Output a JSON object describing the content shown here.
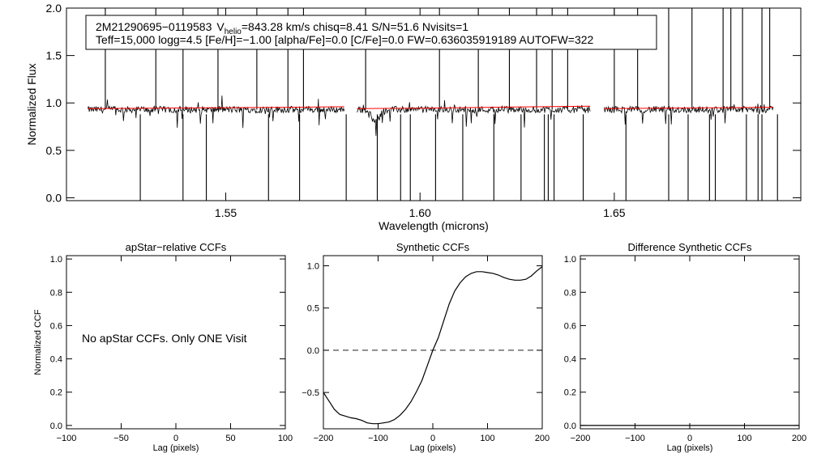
{
  "chart_data": [
    {
      "type": "line",
      "header_line1": {
        "star_id": "2M21290695−0119583",
        "vhelio_symbol": "V",
        "vhelio_sub": "helio",
        "rest": "=843.28 km/s  chisq=8.41  S/N=51.6  Nvisits=1"
      },
      "header_line2": "Teff=15,000 logg=4.5 [Fe/H]=−1.00 [alpha/Fe]=0.0 [C/Fe]=0.0 FW=0.636035919189 AUTOFW=322",
      "xlabel": "Wavelength (microns)",
      "ylabel": "Normalized Flux",
      "xlim": [
        1.509,
        1.698
      ],
      "ylim": [
        -0.03,
        2.0
      ],
      "xticks": [
        1.55,
        1.6,
        1.65
      ],
      "xtick_labels": [
        "1.55",
        "1.60",
        "1.65"
      ],
      "yticks": [
        0.0,
        0.5,
        1.0,
        1.5,
        2.0
      ],
      "ytick_labels": [
        "0.0",
        "0.5",
        "1.0",
        "1.5",
        "2.0"
      ],
      "chip_ranges": [
        [
          1.5145,
          1.5805
        ],
        [
          1.5838,
          1.6438
        ],
        [
          1.6474,
          1.6909
        ]
      ],
      "series": [
        {
          "name": "observed spectrum",
          "color": "#000000",
          "level": 0.93,
          "noise": 0.035
        },
        {
          "name": "synthetic model",
          "color": "#ff0000",
          "x": [
            1.5145,
            1.53,
            1.55,
            1.57,
            1.5805,
            1.5838,
            1.6,
            1.62,
            1.6438,
            1.6474,
            1.66,
            1.68,
            1.6909
          ],
          "y": [
            0.94,
            0.945,
            0.95,
            0.955,
            0.96,
            0.94,
            0.945,
            0.955,
            0.965,
            0.94,
            0.945,
            0.95,
            0.955
          ]
        }
      ],
      "emission_spikes": [
        1.519,
        1.532,
        1.539,
        1.548,
        1.558,
        1.566,
        1.57,
        1.586,
        1.605,
        1.615,
        1.623,
        1.63,
        1.634,
        1.638,
        1.65,
        1.656,
        1.664,
        1.67,
        1.678,
        1.68,
        1.683,
        1.688,
        1.69
      ],
      "absorption_dips": [
        1.528,
        1.539,
        1.545,
        1.561,
        1.569,
        1.581,
        1.589,
        1.595,
        1.5975,
        1.604,
        1.611,
        1.619,
        1.626,
        1.632,
        1.633,
        1.6345,
        1.642,
        1.653,
        1.664,
        1.669,
        1.6745,
        1.676,
        1.684,
        1.687,
        1.688,
        1.692
      ]
    },
    {
      "type": "line",
      "title": "apStar−relative CCFs",
      "xlabel": "Lag (pixels)",
      "ylabel": "Normalized CCF",
      "xlim": [
        -100,
        100
      ],
      "ylim": [
        -0.02,
        1.02
      ],
      "xticks": [
        -100,
        -50,
        0,
        50,
        100
      ],
      "xtick_labels": [
        "−100",
        "−50",
        "0",
        "50",
        "100"
      ],
      "yticks": [
        0.0,
        0.2,
        0.4,
        0.6,
        0.8,
        1.0
      ],
      "ytick_labels": [
        "0.0",
        "0.2",
        "0.4",
        "0.6",
        "0.8",
        "1.0"
      ],
      "message": "No apStar CCFs.  Only ONE Visit",
      "series": []
    },
    {
      "type": "line",
      "title": "Synthetic CCFs",
      "xlabel": "Lag (pixels)",
      "ylabel": "",
      "xlim": [
        -200,
        200
      ],
      "ylim": [
        -0.93,
        1.12
      ],
      "xticks": [
        -200,
        -100,
        0,
        100,
        200
      ],
      "xtick_labels": [
        "−200",
        "−100",
        "0",
        "100",
        "200"
      ],
      "yticks": [
        -0.5,
        0.0,
        0.5,
        1.0
      ],
      "ytick_labels": [
        "−0.5",
        "0.0",
        "0.5",
        "1.0"
      ],
      "zero_line": "dashed",
      "series": [
        {
          "name": "synthetic CCF",
          "x": [
            -200,
            -190,
            -180,
            -170,
            -160,
            -150,
            -140,
            -130,
            -120,
            -110,
            -100,
            -90,
            -80,
            -70,
            -60,
            -50,
            -40,
            -30,
            -20,
            -10,
            0,
            10,
            20,
            30,
            40,
            50,
            60,
            70,
            80,
            90,
            100,
            110,
            120,
            130,
            140,
            150,
            160,
            170,
            180,
            190,
            200
          ],
          "y": [
            -0.5,
            -0.6,
            -0.7,
            -0.76,
            -0.78,
            -0.8,
            -0.81,
            -0.83,
            -0.86,
            -0.87,
            -0.87,
            -0.86,
            -0.85,
            -0.82,
            -0.77,
            -0.7,
            -0.61,
            -0.49,
            -0.36,
            -0.18,
            0.0,
            0.15,
            0.35,
            0.55,
            0.7,
            0.8,
            0.87,
            0.91,
            0.93,
            0.93,
            0.92,
            0.91,
            0.89,
            0.86,
            0.84,
            0.83,
            0.83,
            0.84,
            0.88,
            0.94,
            0.99
          ]
        }
      ]
    },
    {
      "type": "line",
      "title": "Difference Synthetic CCFs",
      "xlabel": "Lag (pixels)",
      "ylabel": "",
      "xlim": [
        -200,
        200
      ],
      "ylim": [
        -0.02,
        1.02
      ],
      "xticks": [
        -200,
        -100,
        0,
        100,
        200
      ],
      "xtick_labels": [
        "−200",
        "−100",
        "0",
        "100",
        "200"
      ],
      "yticks": [
        0.0,
        0.2,
        0.4,
        0.6,
        0.8,
        1.0
      ],
      "ytick_labels": [
        "0.0",
        "0.2",
        "0.4",
        "0.6",
        "0.8",
        "1.0"
      ],
      "series": [
        {
          "name": "difference CCF",
          "x": [
            -200,
            200
          ],
          "y": [
            0.0,
            0.0
          ]
        }
      ]
    }
  ]
}
